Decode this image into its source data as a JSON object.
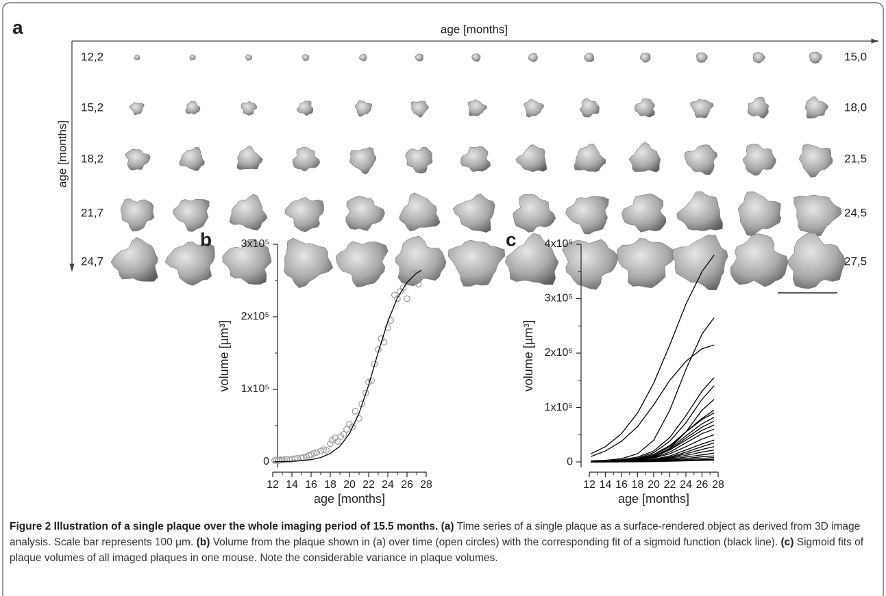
{
  "panel_a": {
    "label": "a",
    "top_axis_label": "age [months]",
    "side_axis_label": "age [months]",
    "row_start_labels": [
      "12,2",
      "15,2",
      "18,2",
      "21,7",
      "24,7"
    ],
    "row_end_labels": [
      "15,0",
      "18,0",
      "21,5",
      "24,5",
      "27,5"
    ]
  },
  "chart_data": [
    {
      "type": "scatter",
      "label": "b",
      "x_label": "age [months]",
      "y_label": "volume [µm³]",
      "xlim": [
        12,
        28
      ],
      "xticks": [
        12,
        14,
        16,
        18,
        20,
        22,
        24,
        26,
        28
      ],
      "xminorticks": [
        13,
        15,
        17,
        19,
        21,
        23,
        25,
        27
      ],
      "ylim": [
        -8000,
        300000
      ],
      "yticks": [
        0,
        {
          "value": 100000,
          "label": "1x10⁵"
        },
        {
          "value": 200000,
          "label": "2x10⁵"
        },
        {
          "value": 300000,
          "label": "3x10⁵"
        }
      ],
      "yminorticks": [
        50000,
        150000,
        250000
      ],
      "series": [
        {
          "marker": "open-circle",
          "color": "#9a9a9a",
          "x": [
            12.2,
            12.4,
            12.6,
            12.8,
            13.0,
            13.2,
            13.5,
            13.8,
            14.0,
            14.3,
            14.6,
            15.0,
            15.2,
            15.5,
            15.8,
            16.0,
            16.3,
            16.6,
            17.0,
            17.3,
            17.6,
            18.0,
            18.2,
            18.5,
            18.8,
            19.1,
            19.4,
            19.7,
            20.0,
            20.3,
            20.6,
            21.0,
            21.3,
            21.7,
            22.0,
            22.3,
            22.6,
            23.0,
            23.3,
            23.6,
            24.0,
            24.3,
            24.7,
            25.0,
            25.3,
            25.6,
            26.0,
            26.3,
            26.6,
            27.0,
            27.2,
            27.5
          ],
          "values": [
            2000,
            2500,
            2000,
            3000,
            2500,
            3000,
            3500,
            3000,
            4000,
            4500,
            5000,
            5500,
            6000,
            7000,
            9000,
            10000,
            12000,
            13000,
            15000,
            17000,
            16000,
            25000,
            30000,
            33000,
            28000,
            35000,
            38000,
            45000,
            52000,
            48000,
            70000,
            60000,
            80000,
            95000,
            110000,
            112000,
            135000,
            155000,
            170000,
            165000,
            185000,
            195000,
            230000,
            225000,
            235000,
            240000,
            225000,
            250000,
            260000,
            260000,
            245000,
            258000
          ]
        },
        {
          "marker": "none",
          "color": "#000000",
          "x": [
            12.2,
            13,
            14,
            15,
            16,
            17,
            18,
            19,
            20,
            21,
            22,
            23,
            24,
            25,
            26,
            27,
            27.5
          ],
          "values": [
            250,
            426,
            830,
            1620,
            3110,
            6020,
            11500,
            21500,
            39000,
            67100,
            106000,
            151200,
            193700,
            226100,
            247600,
            260200,
            264200
          ]
        }
      ]
    },
    {
      "type": "line",
      "label": "c",
      "x_label": "age [months]",
      "y_label": "volume [µm³]",
      "color": "#000000",
      "xlim": [
        12,
        28
      ],
      "xticks": [
        12,
        14,
        16,
        18,
        20,
        22,
        24,
        26,
        28
      ],
      "xminorticks": [
        13,
        15,
        17,
        19,
        21,
        23,
        25,
        27
      ],
      "ylim": [
        -10000,
        400000
      ],
      "yticks": [
        0,
        {
          "value": 100000,
          "label": "1x10⁵"
        },
        {
          "value": 200000,
          "label": "2x10⁵"
        },
        {
          "value": 300000,
          "label": "3x10⁵"
        },
        {
          "value": 400000,
          "label": "4x10⁵"
        }
      ],
      "yminorticks": [
        50000,
        150000,
        250000,
        350000
      ],
      "x": [
        12.2,
        14,
        16,
        18,
        20,
        22,
        24,
        26,
        27.5
      ],
      "series": [
        {
          "values": [
            15000,
            28000,
            52000,
            90000,
            145000,
            215000,
            290000,
            350000,
            380000
          ]
        },
        {
          "values": [
            2000,
            3000,
            6000,
            15000,
            40000,
            95000,
            170000,
            235000,
            265000
          ]
        },
        {
          "values": [
            10000,
            20000,
            38000,
            65000,
            105000,
            150000,
            185000,
            208000,
            215000
          ]
        },
        {
          "values": [
            1000,
            2000,
            4000,
            9000,
            20000,
            45000,
            85000,
            130000,
            155000
          ]
        },
        {
          "values": [
            500,
            1000,
            3000,
            7000,
            17000,
            38000,
            72000,
            115000,
            140000
          ]
        },
        {
          "values": [
            200,
            500,
            1500,
            4000,
            10000,
            25000,
            55000,
            95000,
            115000
          ]
        },
        {
          "values": [
            300,
            800,
            2000,
            5000,
            12000,
            28000,
            55000,
            80000,
            95000
          ]
        },
        {
          "values": [
            500,
            1000,
            2500,
            6000,
            14000,
            30000,
            55000,
            78000,
            90000
          ]
        },
        {
          "values": [
            200,
            600,
            1500,
            4000,
            10000,
            24000,
            48000,
            70000,
            82000
          ]
        },
        {
          "values": [
            100,
            400,
            1200,
            3500,
            9000,
            22000,
            44000,
            64000,
            75000
          ]
        },
        {
          "values": [
            300,
            800,
            2000,
            5000,
            11000,
            22000,
            40000,
            58000,
            68000
          ]
        },
        {
          "values": [
            100,
            300,
            1000,
            3000,
            8000,
            18000,
            35000,
            52000,
            60000
          ]
        },
        {
          "values": [
            200,
            500,
            1200,
            3000,
            7000,
            15000,
            28000,
            42000,
            50000
          ]
        },
        {
          "values": [
            100,
            300,
            800,
            2000,
            5000,
            11000,
            22000,
            33000,
            40000
          ]
        },
        {
          "values": [
            100,
            300,
            700,
            1800,
            4000,
            9000,
            18000,
            28000,
            35000
          ]
        },
        {
          "values": [
            100,
            200,
            600,
            1500,
            3500,
            8000,
            15000,
            23000,
            28000
          ]
        },
        {
          "values": [
            100,
            200,
            500,
            1200,
            3000,
            6500,
            12000,
            18000,
            22000
          ]
        },
        {
          "values": [
            50,
            150,
            400,
            1000,
            2500,
            5000,
            9000,
            13000,
            16000
          ]
        },
        {
          "values": [
            50,
            100,
            300,
            800,
            1800,
            3500,
            6500,
            9500,
            11000
          ]
        },
        {
          "values": [
            50,
            100,
            200,
            600,
            1200,
            2500,
            4500,
            6500,
            8000
          ]
        },
        {
          "values": [
            20,
            50,
            150,
            400,
            900,
            1800,
            3000,
            4200,
            5000
          ]
        },
        {
          "values": [
            10,
            30,
            100,
            300,
            600,
            1200,
            2000,
            2800,
            3200
          ]
        }
      ]
    }
  ],
  "caption": {
    "title": "Figure 2 Illustration of a single plaque over the whole imaging period of 15.5 months.",
    "parts": [
      {
        "label": "(a)",
        "text": "Time series of a single plaque as a surface-rendered object as derived from 3D image analysis. Scale bar represents 100 μm."
      },
      {
        "label": "(b)",
        "text": "Volume from the plaque shown in (a) over time (open circles) with the corresponding fit of a sigmoid function (black line)."
      },
      {
        "label": "(c)",
        "text": "Sigmoid fits of plaque volumes of all imaged plaques in one mouse. Note the considerable variance in plaque volumes."
      }
    ]
  }
}
